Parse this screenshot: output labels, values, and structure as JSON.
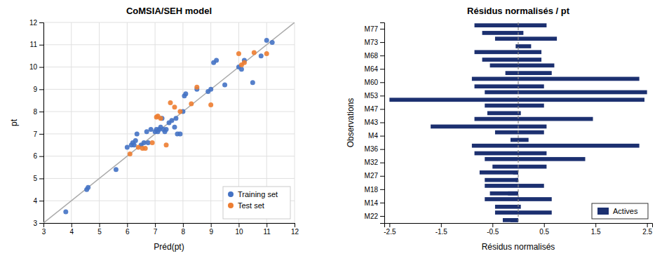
{
  "chart_data": [
    {
      "type": "scatter",
      "title": "CoMSIA/SEH model",
      "xlabel": "Préd(pt)",
      "ylabel": "pt",
      "xlim": [
        3,
        12
      ],
      "ylim": [
        3,
        12
      ],
      "xticks": [
        3,
        4,
        5,
        6,
        7,
        8,
        9,
        10,
        11,
        12
      ],
      "yticks": [
        3,
        4,
        5,
        6,
        7,
        8,
        9,
        10,
        11,
        12
      ],
      "grid": true,
      "legend": "lower right",
      "series": [
        {
          "name": "Training set",
          "color": "#4472c4",
          "x": [
            3.8,
            4.55,
            4.6,
            5.6,
            6.0,
            6.15,
            6.2,
            6.25,
            6.3,
            6.35,
            6.5,
            6.6,
            6.7,
            6.75,
            6.85,
            7.0,
            7.05,
            7.1,
            7.15,
            7.2,
            7.25,
            7.3,
            7.35,
            7.4,
            7.5,
            7.6,
            7.7,
            7.75,
            7.8,
            7.9,
            8.0,
            8.05,
            8.1,
            8.5,
            8.9,
            9.0,
            9.1,
            9.2,
            9.5,
            10.0,
            10.1,
            10.2,
            10.5,
            10.8,
            11.0,
            11.2
          ],
          "values": [
            3.5,
            4.5,
            4.6,
            5.4,
            6.4,
            6.5,
            6.6,
            6.5,
            6.7,
            7.0,
            6.5,
            6.6,
            7.1,
            6.6,
            7.2,
            7.1,
            7.2,
            7.1,
            7.2,
            7.3,
            7.7,
            7.2,
            7.1,
            7.2,
            7.5,
            7.6,
            7.3,
            7.7,
            7.0,
            7.0,
            8.0,
            8.7,
            8.8,
            9.0,
            8.9,
            9.0,
            10.2,
            10.3,
            9.2,
            10.0,
            9.9,
            10.3,
            9.3,
            10.5,
            11.2,
            11.1
          ]
        },
        {
          "name": "Test set",
          "color": "#ed7d31",
          "x": [
            6.1,
            6.4,
            6.55,
            6.65,
            6.9,
            7.05,
            7.1,
            7.2,
            7.4,
            7.55,
            7.7,
            7.9,
            8.3,
            8.5,
            9.0,
            10.0,
            10.1,
            10.2,
            10.55,
            11.0
          ],
          "values": [
            6.1,
            6.4,
            6.35,
            6.35,
            6.6,
            7.75,
            7.8,
            7.7,
            6.5,
            8.4,
            8.2,
            8.0,
            8.35,
            9.1,
            8.3,
            10.6,
            10.1,
            10.2,
            10.65,
            10.6
          ]
        }
      ]
    },
    {
      "type": "bar",
      "orientation": "horizontal",
      "title": "Résidus normalisés / pt",
      "xlabel": "Résidus normalisés",
      "ylabel": "Observations",
      "xlim": [
        -2.6,
        2.6
      ],
      "xticks": [
        -2.5,
        -1.5,
        -0.5,
        0.5,
        1.5,
        2.5
      ],
      "grid": false,
      "legend": "lower right",
      "categories": [
        "M77",
        "M73",
        "M68",
        "M64",
        "M60",
        "M53",
        "M47",
        "M43",
        "M4",
        "M36",
        "M32",
        "M27",
        "M18",
        "M14",
        "M22"
      ],
      "series": [
        {
          "name": "Actives",
          "color": "#1c3070",
          "values": [
            0.1,
            0.25,
            0.45,
            0.65,
            0.5,
            2.45,
            0.05,
            0.55,
            0.2,
            0.55,
            0.55,
            -0.05,
            -0.2,
            0.05,
            -0.15
          ],
          "top_neg": [
            -0.7,
            -0.05,
            -0.7,
            -0.25,
            -0.85,
            -2.5,
            -0.6,
            -1.7,
            -0.15,
            -0.85,
            -0.5,
            -0.65,
            -0.55,
            -0.45,
            -0.3
          ],
          "bottom_values": [
            0.55,
            0.75,
            0.45,
            0.7,
            2.35,
            2.5,
            0.5,
            1.45,
            0.5,
            2.35,
            1.3,
            -0.1,
            0.5,
            0.65,
            0.65
          ],
          "bottom_neg": [
            -0.85,
            -0.45,
            -0.85,
            -0.55,
            -0.9,
            -0.65,
            -0.65,
            -0.85,
            -0.45,
            -0.9,
            -0.65,
            -0.75,
            -0.65,
            -0.65,
            -0.45
          ]
        }
      ]
    }
  ]
}
